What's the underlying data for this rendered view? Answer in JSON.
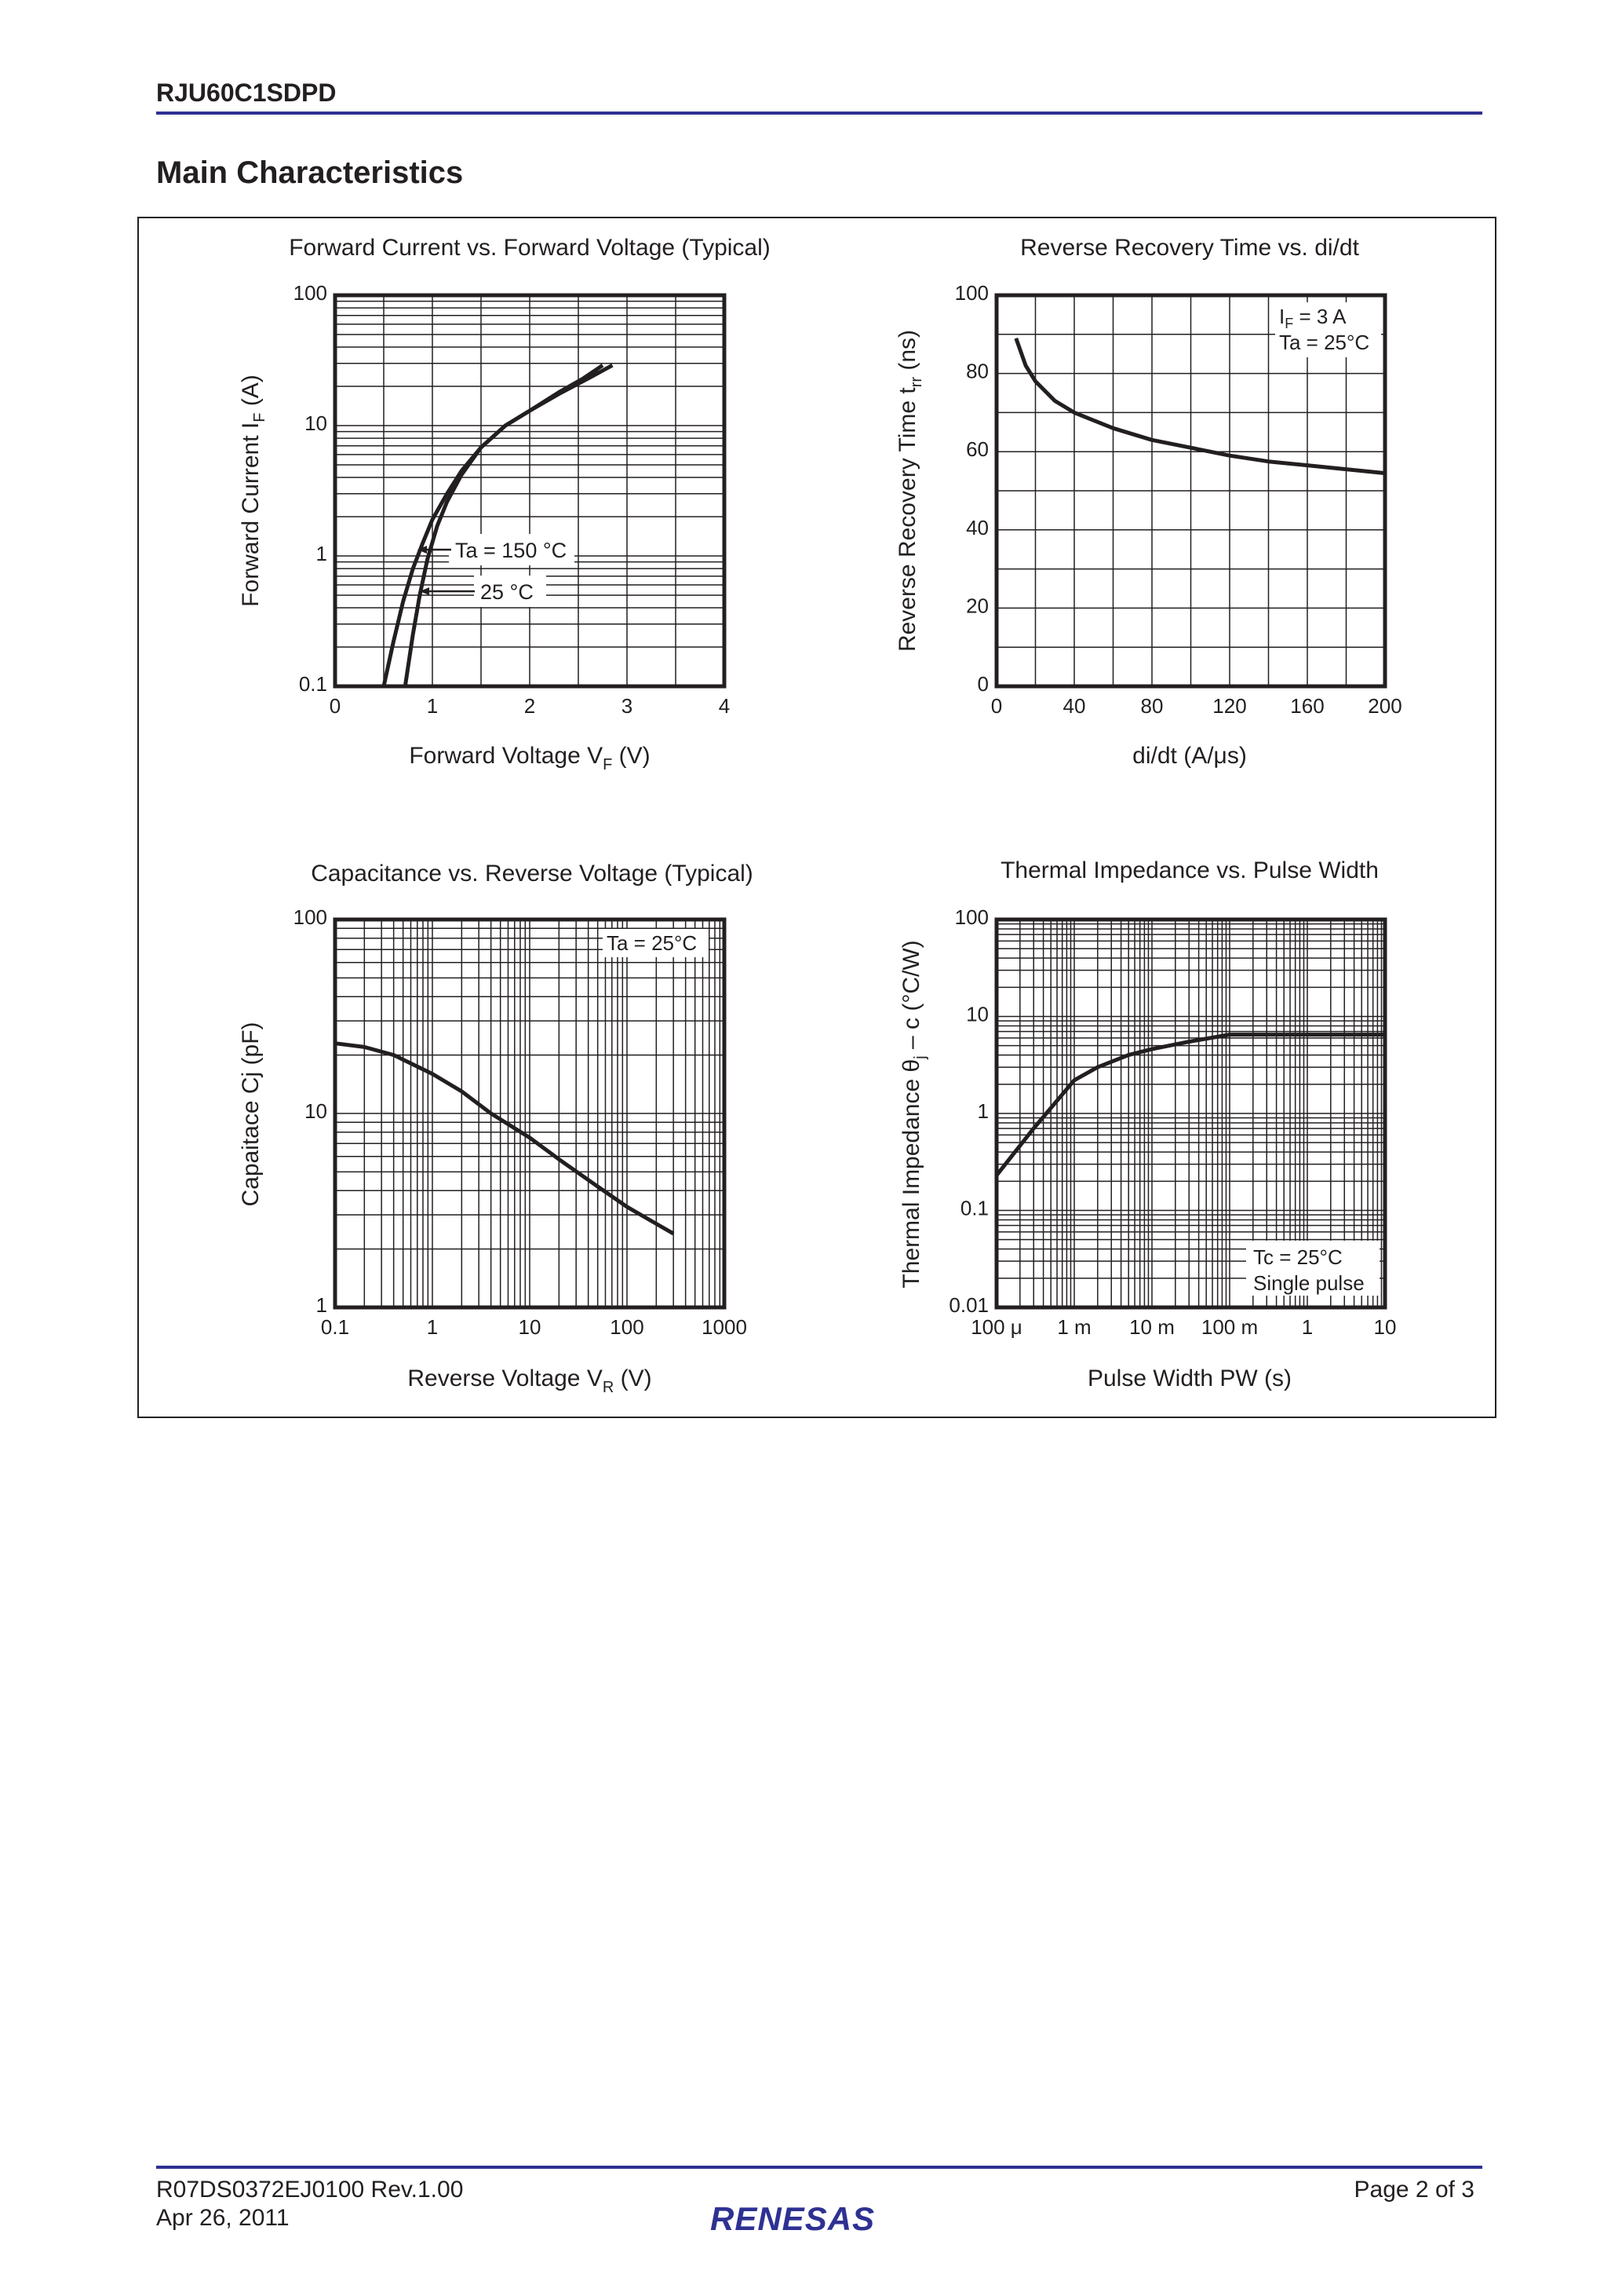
{
  "header": {
    "doc_id": "RJU60C1SDPD",
    "section_title": "Main Characteristics"
  },
  "footer": {
    "doc_number": "R07DS0372EJ0100  Rev.1.00",
    "date": "Apr 26, 2011",
    "page": "Page 2 of 3",
    "logo_text": "RENESAS",
    "brand_color": "#2e3192"
  },
  "chart_data": [
    {
      "type": "line",
      "title": "Forward Current vs. Forward Voltage (Typical)",
      "xlabel": {
        "main": "Forward Voltage   V",
        "sub": "F",
        "unit": "  (V)"
      },
      "ylabel": {
        "main": "Forward Current   I",
        "sub": "F",
        "unit": "  (A)"
      },
      "xscale": "linear",
      "yscale": "log",
      "xlim": [
        0,
        4
      ],
      "ylim": [
        0.1,
        100
      ],
      "xticks": [
        "0",
        "1",
        "2",
        "3",
        "4"
      ],
      "yticks": [
        "0.1",
        "1",
        "10",
        "100"
      ],
      "grid": true,
      "annotations": [
        "Ta = 150 °C",
        "25 °C"
      ],
      "series": [
        {
          "name": "Ta = 150 °C",
          "x": [
            0.5,
            0.6,
            0.7,
            0.8,
            0.9,
            1.0,
            1.15,
            1.3,
            1.5,
            1.75,
            2.0,
            2.3,
            2.6,
            2.85
          ],
          "y": [
            0.1,
            0.22,
            0.45,
            0.8,
            1.25,
            1.9,
            3.0,
            4.5,
            6.8,
            10,
            13,
            17.5,
            23,
            29
          ]
        },
        {
          "name": "25 °C",
          "x": [
            0.72,
            0.8,
            0.87,
            0.95,
            1.05,
            1.15,
            1.3,
            1.5,
            1.75,
            2.0,
            2.3,
            2.55,
            2.75
          ],
          "y": [
            0.1,
            0.25,
            0.5,
            0.95,
            1.7,
            2.6,
            4.2,
            6.8,
            10,
            13,
            18,
            23,
            29
          ]
        }
      ]
    },
    {
      "type": "line",
      "title": "Reverse Recovery Time vs. di/dt",
      "xlabel": {
        "main": "di/dt  (A/μs)",
        "sub": "",
        "unit": ""
      },
      "ylabel": {
        "main": "Reverse Recovery Time   t",
        "sub": "rr",
        "unit": "   (ns)"
      },
      "xscale": "linear",
      "yscale": "linear",
      "xlim": [
        0,
        200
      ],
      "ylim": [
        0,
        100
      ],
      "xticks": [
        "0",
        "40",
        "80",
        "120",
        "160",
        "200"
      ],
      "yticks": [
        "0",
        "20",
        "40",
        "60",
        "80",
        "100"
      ],
      "grid": true,
      "annotations": [
        {
          "main": "I",
          "sub": "F",
          "rest": " = 3 A"
        },
        "Ta = 25°C"
      ],
      "series": [
        {
          "x": [
            10,
            15,
            20,
            30,
            40,
            50,
            60,
            80,
            100,
            120,
            140,
            160,
            180,
            200
          ],
          "y": [
            89,
            82,
            78,
            73,
            70,
            68,
            66,
            63,
            61,
            59,
            57.5,
            56.5,
            55.5,
            54.5
          ]
        }
      ]
    },
    {
      "type": "line",
      "title": "Capacitance vs. Reverse Voltage (Typical)",
      "xlabel": {
        "main": "Reverse Voltage   V",
        "sub": "R",
        "unit": "  (V)"
      },
      "ylabel": {
        "main": "Capaitace   Cj  (pF)",
        "sub": "",
        "unit": ""
      },
      "xscale": "log",
      "yscale": "log",
      "xlim": [
        0.1,
        1000
      ],
      "ylim": [
        1,
        100
      ],
      "xticks": [
        "0.1",
        "1",
        "10",
        "100",
        "1000"
      ],
      "yticks": [
        "1",
        "10",
        "100"
      ],
      "grid": true,
      "annotations": [
        "Ta = 25°C"
      ],
      "series": [
        {
          "x": [
            0.1,
            0.2,
            0.4,
            1,
            2,
            4,
            10,
            20,
            50,
            100,
            200,
            300
          ],
          "y": [
            23,
            22,
            20,
            16,
            13,
            10,
            7.5,
            5.8,
            4.2,
            3.3,
            2.7,
            2.4
          ]
        }
      ]
    },
    {
      "type": "line",
      "title": "Thermal Impedance vs. Pulse Width",
      "xlabel": {
        "main": "Pulse Width   PW   (s)",
        "sub": "",
        "unit": ""
      },
      "ylabel": {
        "main": "Thermal Impedance   θ",
        "sub": "j",
        "unit": " – c   (°C/W)"
      },
      "xscale": "log",
      "yscale": "log",
      "xlim": [
        0.0001,
        10
      ],
      "ylim": [
        0.01,
        100
      ],
      "xticks": [
        "100 μ",
        "1 m",
        "10 m",
        "100 m",
        "1",
        "10"
      ],
      "yticks": [
        "0.01",
        "0.1",
        "1",
        "10",
        "100"
      ],
      "grid": true,
      "annotations": [
        "Tc = 25°C",
        "Single pulse"
      ],
      "series": [
        {
          "x": [
            0.0001,
            0.0003,
            0.001,
            0.002,
            0.005,
            0.01,
            0.03,
            0.1,
            1,
            10
          ],
          "y": [
            0.23,
            0.7,
            2.2,
            3.0,
            4.0,
            4.6,
            5.5,
            6.5,
            6.5,
            6.5
          ]
        }
      ]
    }
  ]
}
